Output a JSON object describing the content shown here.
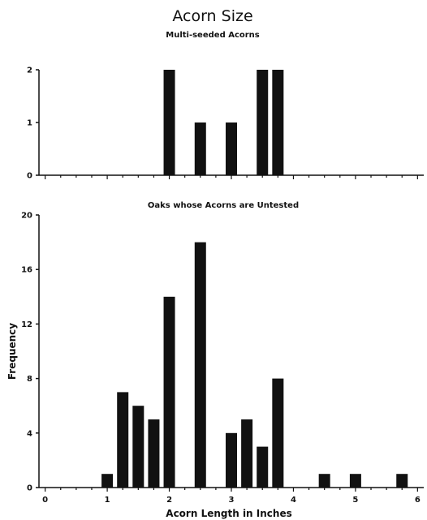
{
  "title": "Acorn Size",
  "chart_data": [
    {
      "type": "bar",
      "title": "Multi-seeded Acorns",
      "bar_color": "#111111",
      "x": [
        2.0,
        2.5,
        3.0,
        3.5,
        3.75
      ],
      "values": [
        2,
        1,
        1,
        2,
        2
      ],
      "xlim": [
        -0.1,
        6.1
      ],
      "ylim": [
        0,
        2
      ],
      "yticks": [
        "0",
        "1",
        "2"
      ],
      "xlabel": "",
      "ylabel": ""
    },
    {
      "type": "bar",
      "title": "Oaks whose Acorns are Untested",
      "bar_color": "#111111",
      "x": [
        1.0,
        1.25,
        1.5,
        1.75,
        2.0,
        2.5,
        3.0,
        3.25,
        3.5,
        3.75,
        4.5,
        5.0,
        5.75
      ],
      "values": [
        1,
        7,
        6,
        5,
        14,
        18,
        4,
        5,
        3,
        8,
        1,
        1,
        1
      ],
      "xlim": [
        -0.1,
        6.1
      ],
      "ylim": [
        0,
        20
      ],
      "yticks": [
        "0",
        "4",
        "8",
        "12",
        "16",
        "20"
      ],
      "xticks": [
        "0",
        "1",
        "2",
        "3",
        "4",
        "5",
        "6"
      ],
      "xlabel": "Acorn Length in Inches",
      "ylabel": "Frequency"
    }
  ]
}
